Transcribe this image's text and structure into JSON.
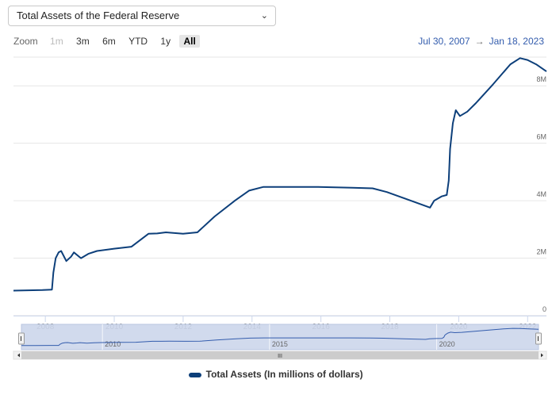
{
  "selector": {
    "value": "Total Assets of the Federal Reserve",
    "chevron_icon": "chevron-down-icon"
  },
  "zoom": {
    "label": "Zoom",
    "buttons": [
      {
        "label": "1m",
        "state": "disabled"
      },
      {
        "label": "3m",
        "state": "normal"
      },
      {
        "label": "6m",
        "state": "normal"
      },
      {
        "label": "YTD",
        "state": "normal"
      },
      {
        "label": "1y",
        "state": "normal"
      },
      {
        "label": "All",
        "state": "active"
      }
    ]
  },
  "range": {
    "from": "Jul 30, 2007",
    "arrow": "→",
    "to": "Jan 18, 2023"
  },
  "navigator": {
    "labels": [
      "2010",
      "2015",
      "2020"
    ],
    "scroll_left_icon": "arrow-left-icon",
    "scroll_right_icon": "arrow-right-icon",
    "handle_icon": "grip-icon",
    "handle_glyph": "III"
  },
  "legend": {
    "label": "Total Assets (In millions of dollars)"
  },
  "colors": {
    "series": "#0d3f7a",
    "navigator_fill": "#ccd6eb",
    "range_text": "#335cad"
  },
  "chart_data": {
    "type": "line",
    "title": "",
    "xlabel": "",
    "ylabel": "",
    "x_ticks": [
      "2008",
      "2010",
      "2012",
      "2014",
      "2016",
      "2018",
      "2020",
      "2022"
    ],
    "y_ticks": [
      "0",
      "2M",
      "4M",
      "6M",
      "8M"
    ],
    "xlim": [
      "2007-07-30",
      "2023-01-18"
    ],
    "ylim": [
      0,
      9000000
    ],
    "grid": "horizontal",
    "legend_position": "bottom-center",
    "series": [
      {
        "name": "Total Assets (In millions of dollars)",
        "points": [
          [
            "2007-07-30",
            870000
          ],
          [
            "2008-01-01",
            880000
          ],
          [
            "2008-06-01",
            890000
          ],
          [
            "2008-09-10",
            905000
          ],
          [
            "2008-09-25",
            1500000
          ],
          [
            "2008-10-20",
            2000000
          ],
          [
            "2008-11-20",
            2200000
          ],
          [
            "2008-12-17",
            2250000
          ],
          [
            "2009-02-10",
            1900000
          ],
          [
            "2009-04-01",
            2050000
          ],
          [
            "2009-05-01",
            2200000
          ],
          [
            "2009-07-15",
            2000000
          ],
          [
            "2009-10-01",
            2150000
          ],
          [
            "2010-01-01",
            2250000
          ],
          [
            "2010-07-01",
            2330000
          ],
          [
            "2011-01-01",
            2400000
          ],
          [
            "2011-06-30",
            2850000
          ],
          [
            "2011-10-01",
            2860000
          ],
          [
            "2012-01-01",
            2900000
          ],
          [
            "2012-07-01",
            2850000
          ],
          [
            "2012-12-01",
            2900000
          ],
          [
            "2013-06-01",
            3450000
          ],
          [
            "2014-01-01",
            4000000
          ],
          [
            "2014-06-01",
            4350000
          ],
          [
            "2014-11-01",
            4480000
          ],
          [
            "2015-06-01",
            4480000
          ],
          [
            "2016-06-01",
            4480000
          ],
          [
            "2017-06-01",
            4450000
          ],
          [
            "2018-01-01",
            4430000
          ],
          [
            "2018-06-01",
            4300000
          ],
          [
            "2019-01-01",
            4050000
          ],
          [
            "2019-09-01",
            3760000
          ],
          [
            "2019-10-15",
            4000000
          ],
          [
            "2020-01-01",
            4150000
          ],
          [
            "2020-02-26",
            4200000
          ],
          [
            "2020-03-18",
            4700000
          ],
          [
            "2020-04-01",
            5800000
          ],
          [
            "2020-05-01",
            6700000
          ],
          [
            "2020-06-01",
            7150000
          ],
          [
            "2020-07-15",
            6950000
          ],
          [
            "2020-10-01",
            7100000
          ],
          [
            "2021-01-01",
            7400000
          ],
          [
            "2021-07-01",
            8050000
          ],
          [
            "2022-01-01",
            8750000
          ],
          [
            "2022-04-13",
            8965000
          ],
          [
            "2022-07-01",
            8900000
          ],
          [
            "2022-10-01",
            8750000
          ],
          [
            "2023-01-18",
            8500000
          ]
        ]
      }
    ]
  }
}
